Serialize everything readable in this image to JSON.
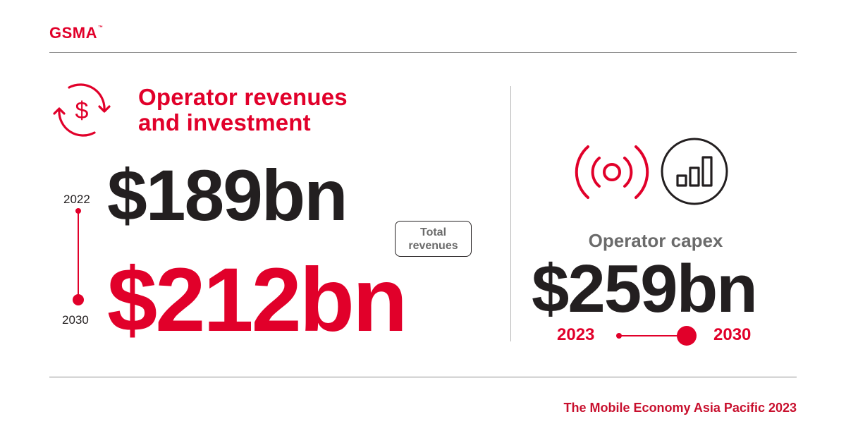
{
  "brand": {
    "logo_text": "GSMA",
    "logo_mark": "™",
    "accent": "#e1002a",
    "dark": "#231f20",
    "grey": "#6b6b6b"
  },
  "revenues": {
    "icon": "dollar-cycle-icon",
    "title_line1": "Operator revenues",
    "title_line2": "and investment",
    "year_start": "2022",
    "year_end": "2030",
    "value_start": "$189bn",
    "value_end": "$212bn",
    "badge_line1": "Total",
    "badge_line2": "revenues"
  },
  "capex": {
    "icons": [
      "signal-broadcast-icon",
      "bar-chart-icon"
    ],
    "label": "Operator capex",
    "value": "$259bn",
    "year_start": "2023",
    "year_end": "2030"
  },
  "footer": {
    "text": "The Mobile Economy Asia Pacific 2023"
  }
}
